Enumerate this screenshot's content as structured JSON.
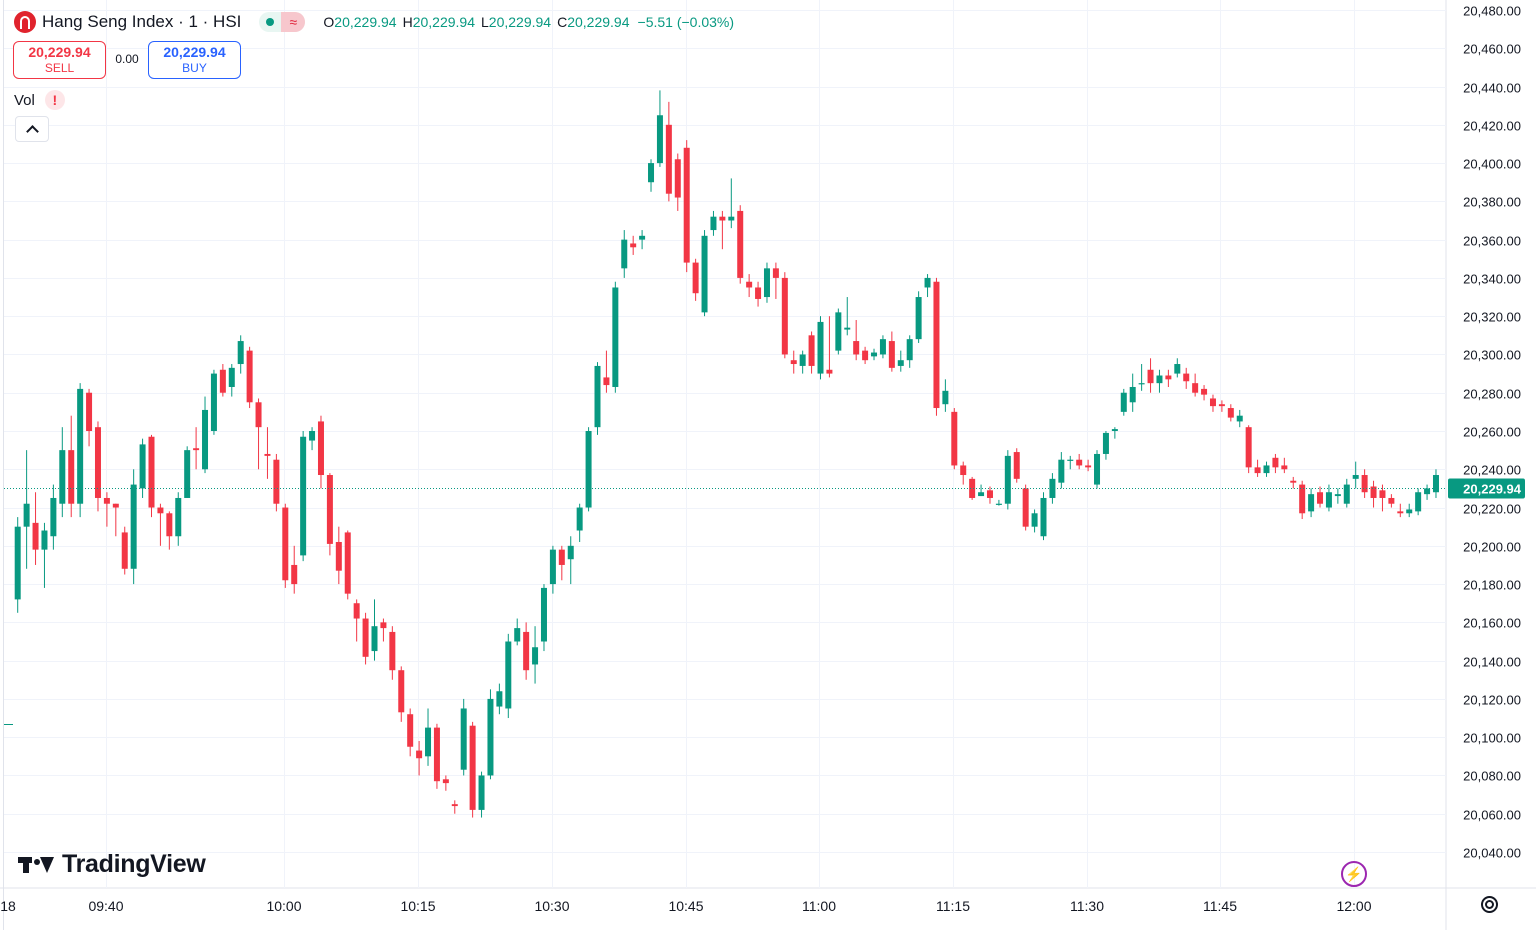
{
  "header": {
    "title": "Hang Seng Index · 1 · HSI",
    "status_wave": "≈",
    "ohlc": [
      {
        "key": "O",
        "value": "20,229.94"
      },
      {
        "key": "H",
        "value": "20,229.94"
      },
      {
        "key": "L",
        "value": "20,229.94"
      },
      {
        "key": "C",
        "value": "20,229.94"
      }
    ],
    "change": "−5.51 (−0.03%)"
  },
  "trade": {
    "sell_price": "20,229.94",
    "sell_label": "SELL",
    "spread": "0.00",
    "buy_price": "20,229.94",
    "buy_label": "BUY"
  },
  "volume": {
    "label": "Vol",
    "warning": "!"
  },
  "brand": {
    "name": "TradingView"
  },
  "colors": {
    "up": "#089981",
    "down": "#f23645",
    "grid": "#f0f3fa",
    "price_line": "#089981"
  },
  "icons": [
    "hsi-logo-icon",
    "market-status-icon",
    "warning-icon",
    "chevron-up-icon",
    "lightning-icon",
    "settings-icon"
  ],
  "chart_data": {
    "type": "candlestick",
    "y_axis": {
      "ylim": [
        20030,
        20485
      ],
      "ticks": [
        "20,480.00",
        "20,460.00",
        "20,440.00",
        "20,420.00",
        "20,400.00",
        "20,380.00",
        "20,360.00",
        "20,340.00",
        "20,320.00",
        "20,300.00",
        "20,280.00",
        "20,260.00",
        "20,240.00",
        "20,220.00",
        "20,200.00",
        "20,180.00",
        "20,160.00",
        "20,140.00",
        "20,120.00",
        "20,100.00",
        "20,080.00",
        "20,060.00",
        "20,040.00"
      ]
    },
    "x_axis": {
      "ticks": [
        "18",
        "09:40",
        "10:00",
        "10:15",
        "10:30",
        "10:45",
        "11:00",
        "11:15",
        "11:30",
        "11:45",
        "12:00"
      ]
    },
    "last_price": {
      "value": 20229.94,
      "label": "20,229.94"
    },
    "candles": [
      [
        20172,
        20210,
        20165,
        20215
      ],
      [
        20210,
        20222,
        20188,
        20250
      ],
      [
        20212,
        20198,
        20190,
        20228
      ],
      [
        20198,
        20208,
        20178,
        20212
      ],
      [
        20205,
        20225,
        20198,
        20232
      ],
      [
        20222,
        20250,
        20215,
        20262
      ],
      [
        20250,
        20222,
        20215,
        20268
      ],
      [
        20222,
        20282,
        20215,
        20285
      ],
      [
        20280,
        20260,
        20252,
        20282
      ],
      [
        20262,
        20225,
        20218,
        20265
      ],
      [
        20225,
        20222,
        20210,
        20228
      ],
      [
        20222,
        20220,
        20205,
        20222
      ],
      [
        20207,
        20188,
        20185,
        20210
      ],
      [
        20188,
        20232,
        20180,
        20240
      ],
      [
        20230,
        20253,
        20225,
        20256
      ],
      [
        20257,
        20220,
        20215,
        20258
      ],
      [
        20220,
        20217,
        20200,
        20222
      ],
      [
        20217,
        20205,
        20198,
        20218
      ],
      [
        20205,
        20225,
        20200,
        20228
      ],
      [
        20225,
        20250,
        20225,
        20252
      ],
      [
        20251,
        20250,
        20240,
        20262
      ],
      [
        20240,
        20271,
        20238,
        20278
      ],
      [
        20260,
        20290,
        20258,
        20292
      ],
      [
        20292,
        20280,
        20278,
        20295
      ],
      [
        20283,
        20293,
        20278,
        20295
      ],
      [
        20295,
        20307,
        20290,
        20310
      ],
      [
        20302,
        20275,
        20272,
        20304
      ],
      [
        20275,
        20262,
        20240,
        20277
      ],
      [
        20248,
        20247,
        20235,
        20262
      ],
      [
        20245,
        20222,
        20218,
        20248
      ],
      [
        20220,
        20182,
        20178,
        20222
      ],
      [
        20190,
        20180,
        20175,
        20200
      ],
      [
        20195,
        20257,
        20192,
        20260
      ],
      [
        20255,
        20260,
        20250,
        20262
      ],
      [
        20265,
        20237,
        20230,
        20268
      ],
      [
        20237,
        20201,
        20195,
        20238
      ],
      [
        20202,
        20187,
        20180,
        20210
      ],
      [
        20207,
        20175,
        20172,
        20208
      ],
      [
        20170,
        20162,
        20150,
        20172
      ],
      [
        20162,
        20142,
        20138,
        20165
      ],
      [
        20145,
        20158,
        20140,
        20172
      ],
      [
        20160,
        20157,
        20150,
        20162
      ],
      [
        20155,
        20135,
        20130,
        20158
      ],
      [
        20135,
        20113,
        20108,
        20137
      ],
      [
        20112,
        20095,
        20090,
        20115
      ],
      [
        20093,
        20089,
        20080,
        20098
      ],
      [
        20090,
        20105,
        20085,
        20115
      ],
      [
        20105,
        20077,
        20073,
        20107
      ],
      [
        20078,
        20076,
        20072,
        20080
      ],
      [
        20065,
        20064,
        20060,
        20067
      ],
      [
        20083,
        20115,
        20080,
        20120
      ],
      [
        20106,
        20062,
        20058,
        20108
      ],
      [
        20062,
        20080,
        20058,
        20082
      ],
      [
        20080,
        20120,
        20078,
        20125
      ],
      [
        20116,
        20124,
        20112,
        20128
      ],
      [
        20115,
        20150,
        20110,
        20154
      ],
      [
        20150,
        20157,
        20148,
        20162
      ],
      [
        20155,
        20135,
        20130,
        20160
      ],
      [
        20138,
        20147,
        20128,
        20158
      ],
      [
        20150,
        20178,
        20145,
        20180
      ],
      [
        20180,
        20198,
        20175,
        20200
      ],
      [
        20198,
        20190,
        20182,
        20200
      ],
      [
        20193,
        20200,
        20180,
        20205
      ],
      [
        20208,
        20220,
        20202,
        20222
      ],
      [
        20220,
        20260,
        20218,
        20262
      ],
      [
        20262,
        20294,
        20258,
        20296
      ],
      [
        20288,
        20284,
        20280,
        20302
      ],
      [
        20283,
        20335,
        20280,
        20338
      ],
      [
        20345,
        20360,
        20340,
        20365
      ],
      [
        20358,
        20356,
        20352,
        20362
      ],
      [
        20360,
        20362,
        20355,
        20365
      ],
      [
        20390,
        20400,
        20385,
        20402
      ],
      [
        20400,
        20425,
        20398,
        20438
      ],
      [
        20420,
        20384,
        20380,
        20432
      ],
      [
        20402,
        20382,
        20375,
        20405
      ],
      [
        20408,
        20348,
        20343,
        20412
      ],
      [
        20348,
        20332,
        20328,
        20350
      ],
      [
        20322,
        20362,
        20320,
        20365
      ],
      [
        20365,
        20372,
        20362,
        20375
      ],
      [
        20372,
        20370,
        20355,
        20375
      ],
      [
        20370,
        20372,
        20366,
        20392
      ],
      [
        20375,
        20340,
        20337,
        20378
      ],
      [
        20338,
        20335,
        20330,
        20342
      ],
      [
        20335,
        20329,
        20325,
        20338
      ],
      [
        20330,
        20345,
        20327,
        20348
      ],
      [
        20345,
        20340,
        20329,
        20348
      ],
      [
        20340,
        20300,
        20298,
        20343
      ],
      [
        20297,
        20295,
        20290,
        20302
      ],
      [
        20294,
        20300,
        20290,
        20302
      ],
      [
        20310,
        20294,
        20290,
        20312
      ],
      [
        20290,
        20317,
        20287,
        20320
      ],
      [
        20292,
        20290,
        20288,
        20320
      ],
      [
        20302,
        20322,
        20300,
        20324
      ],
      [
        20313,
        20314,
        20310,
        20330
      ],
      [
        20307,
        20300,
        20297,
        20318
      ],
      [
        20302,
        20297,
        20295,
        20304
      ],
      [
        20299,
        20301,
        20297,
        20303
      ],
      [
        20300,
        20308,
        20298,
        20310
      ],
      [
        20307,
        20293,
        20291,
        20312
      ],
      [
        20294,
        20297,
        20291,
        20302
      ],
      [
        20297,
        20308,
        20293,
        20310
      ],
      [
        20308,
        20330,
        20306,
        20333
      ],
      [
        20335,
        20340,
        20330,
        20342
      ],
      [
        20338,
        20272,
        20268,
        20340
      ],
      [
        20274,
        20281,
        20270,
        20287
      ],
      [
        20270,
        20242,
        20240,
        20272
      ],
      [
        20242,
        20237,
        20232,
        20244
      ],
      [
        20235,
        20225,
        20224,
        20236
      ],
      [
        20226,
        20228,
        20226,
        20232
      ],
      [
        20229,
        20225,
        20222,
        20231
      ],
      [
        20222,
        20222,
        20221,
        20224
      ],
      [
        20222,
        20247,
        20219,
        20250
      ],
      [
        20249,
        20235,
        20233,
        20251
      ],
      [
        20230,
        20210,
        20208,
        20232
      ],
      [
        20210,
        20217,
        20207,
        20219
      ],
      [
        20205,
        20225,
        20203,
        20228
      ],
      [
        20225,
        20235,
        20222,
        20238
      ],
      [
        20233,
        20245,
        20230,
        20249
      ],
      [
        20245,
        20245,
        20240,
        20247
      ],
      [
        20245,
        20242,
        20240,
        20248
      ],
      [
        20242,
        20241,
        20239,
        20245
      ],
      [
        20232,
        20248,
        20230,
        20250
      ],
      [
        20248,
        20259,
        20245,
        20260
      ],
      [
        20260,
        20261,
        20256,
        20262
      ],
      [
        20270,
        20280,
        20268,
        20282
      ],
      [
        20275,
        20283,
        20270,
        20290
      ],
      [
        20285,
        20285,
        20281,
        20295
      ],
      [
        20292,
        20285,
        20280,
        20298
      ],
      [
        20285,
        20289,
        20280,
        20292
      ],
      [
        20289,
        20287,
        20283,
        20292
      ],
      [
        20290,
        20295,
        20288,
        20298
      ],
      [
        20290,
        20286,
        20282,
        20293
      ],
      [
        20285,
        20280,
        20278,
        20290
      ],
      [
        20282,
        20279,
        20276,
        20284
      ],
      [
        20277,
        20273,
        20270,
        20279
      ],
      [
        20274,
        20273,
        20270,
        20276
      ],
      [
        20272,
        20267,
        20265,
        20274
      ],
      [
        20265,
        20268,
        20262,
        20271
      ],
      [
        20262,
        20241,
        20238,
        20263
      ],
      [
        20241,
        20238,
        20236,
        20245
      ],
      [
        20238,
        20242,
        20236,
        20244
      ],
      [
        20246,
        20241,
        20238,
        20248
      ],
      [
        20242,
        20240,
        20238,
        20246
      ],
      [
        20234,
        20233,
        20230,
        20236
      ],
      [
        20232,
        20217,
        20214,
        20234
      ],
      [
        20218,
        20227,
        20215,
        20230
      ],
      [
        20228,
        20222,
        20220,
        20231
      ],
      [
        20220,
        20228,
        20218,
        20232
      ],
      [
        20226,
        20227,
        20222,
        20230
      ],
      [
        20222,
        20232,
        20220,
        20235
      ],
      [
        20235,
        20237,
        20230,
        20244
      ],
      [
        20237,
        20228,
        20225,
        20240
      ],
      [
        20231,
        20225,
        20220,
        20234
      ],
      [
        20229,
        20225,
        20218,
        20232
      ],
      [
        20225,
        20222,
        20220,
        20227
      ],
      [
        20218,
        20217,
        20215,
        20222
      ],
      [
        20217,
        20219,
        20215,
        20222
      ],
      [
        20218,
        20228,
        20216,
        20230
      ],
      [
        20227,
        20230,
        20224,
        20232
      ],
      [
        20228,
        20237,
        20225,
        20240
      ]
    ]
  }
}
